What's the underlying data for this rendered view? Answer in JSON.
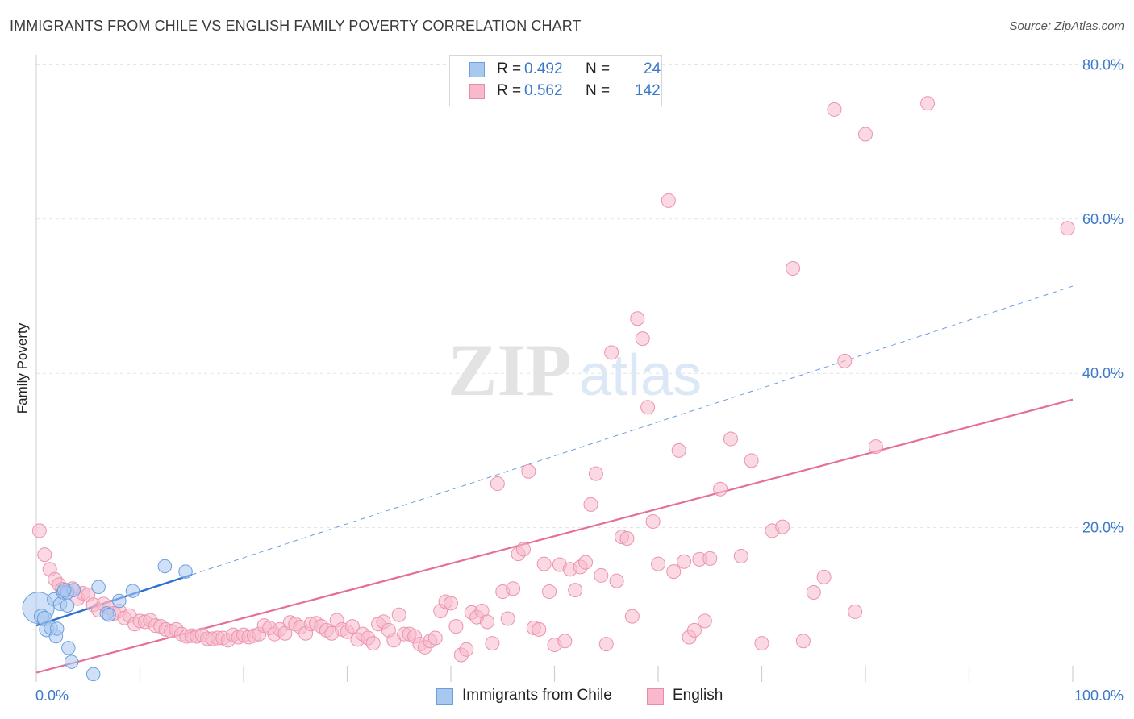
{
  "title": "IMMIGRANTS FROM CHILE VS ENGLISH FAMILY POVERTY CORRELATION CHART",
  "source": "Source: ZipAtlas.com",
  "watermark": {
    "zip": "ZIP",
    "atlas": "atlas"
  },
  "legend_box": {
    "rows": [
      {
        "r_label": "R =",
        "r_value": "0.492",
        "n_label": "N =",
        "n_value": "24",
        "color": "#a9c8f0",
        "border": "#6a9ee0"
      },
      {
        "r_label": "R =",
        "r_value": "0.562",
        "n_label": "N =",
        "n_value": "142",
        "color": "#f7b9cb",
        "border": "#e98aa6"
      }
    ]
  },
  "bottom_legend": {
    "items": [
      {
        "label": "Immigrants from Chile",
        "color": "#a9c8f0",
        "border": "#6a9ee0"
      },
      {
        "label": "English",
        "color": "#f7b9cb",
        "border": "#e98aa6"
      }
    ]
  },
  "chart_data": {
    "type": "scatter",
    "title": "IMMIGRANTS FROM CHILE VS ENGLISH FAMILY POVERTY CORRELATION CHART",
    "xlabel": "",
    "ylabel": "Family Poverty",
    "xlim": [
      0,
      100
    ],
    "ylim": [
      0,
      85
    ],
    "x_tick_labels": [
      {
        "value": 0,
        "label": "0.0%"
      },
      {
        "value": 100,
        "label": "100.0%"
      }
    ],
    "y_tick_labels": [
      {
        "value": 20,
        "label": "20.0%"
      },
      {
        "value": 40,
        "label": "40.0%"
      },
      {
        "value": 60,
        "label": "60.0%"
      },
      {
        "value": 80,
        "label": "80.0%"
      }
    ],
    "colors": {
      "chile": "#5b8fd6",
      "chile_fill": "#a9c8f0",
      "english": "#e56f97",
      "english_fill": "#f7b9cb",
      "grid": "#e3e3e3"
    },
    "series": [
      {
        "name": "Immigrants from Chile",
        "r": 0.492,
        "n": 24,
        "trend": {
          "x0": 0,
          "y0": 7.3,
          "x1": 15,
          "y1": 13.9
        },
        "trend_dashed": {
          "x0": 15,
          "y0": 13.9,
          "x1": 100,
          "y1": 51.3
        },
        "points": [
          [
            0.2,
            9.6,
            26
          ],
          [
            0.5,
            8.5,
            12
          ],
          [
            0.8,
            8.2,
            12
          ],
          [
            1.0,
            6.8,
            12
          ],
          [
            1.4,
            7.0,
            11
          ],
          [
            1.7,
            10.7,
            11
          ],
          [
            1.9,
            5.9,
            11
          ],
          [
            2.0,
            6.9,
            11
          ],
          [
            2.3,
            10.1,
            11
          ],
          [
            2.6,
            11.6,
            11
          ],
          [
            3.0,
            11.6,
            11
          ],
          [
            3.0,
            9.9,
            11
          ],
          [
            3.1,
            4.4,
            11
          ],
          [
            3.4,
            2.6,
            11
          ],
          [
            3.6,
            11.9,
            11
          ],
          [
            5.5,
            1.0,
            11
          ],
          [
            6.0,
            12.3,
            11
          ],
          [
            6.8,
            8.9,
            11
          ],
          [
            7.0,
            8.7,
            11
          ],
          [
            8.0,
            10.5,
            11
          ],
          [
            9.3,
            11.8,
            11
          ],
          [
            12.4,
            15.0,
            11
          ],
          [
            14.4,
            14.3,
            11
          ],
          [
            2.7,
            11.9,
            11
          ]
        ]
      },
      {
        "name": "English",
        "r": 0.562,
        "n": 142,
        "trend": {
          "x0": 0,
          "y0": 1.2,
          "x1": 100,
          "y1": 36.6
        },
        "points": [
          [
            0.3,
            19.6
          ],
          [
            0.8,
            16.5
          ],
          [
            1.3,
            14.6
          ],
          [
            1.8,
            13.3
          ],
          [
            2.2,
            12.6
          ],
          [
            2.5,
            12.0
          ],
          [
            3.0,
            11.9
          ],
          [
            3.5,
            12.1
          ],
          [
            4.0,
            10.8
          ],
          [
            4.5,
            11.5
          ],
          [
            5.0,
            11.3
          ],
          [
            5.5,
            10.0
          ],
          [
            6.0,
            9.3
          ],
          [
            6.5,
            10.1
          ],
          [
            7.0,
            9.6
          ],
          [
            7.5,
            8.9
          ],
          [
            8.0,
            9.2
          ],
          [
            8.5,
            8.3
          ],
          [
            9.0,
            8.6
          ],
          [
            9.5,
            7.5
          ],
          [
            10.0,
            7.9
          ],
          [
            10.5,
            7.8
          ],
          [
            11.0,
            8.0
          ],
          [
            11.5,
            7.3
          ],
          [
            12.0,
            7.2
          ],
          [
            12.5,
            6.8
          ],
          [
            13.0,
            6.6
          ],
          [
            13.5,
            6.8
          ],
          [
            14.0,
            6.2
          ],
          [
            14.5,
            5.9
          ],
          [
            15.0,
            6.0
          ],
          [
            15.5,
            5.9
          ],
          [
            16.0,
            6.1
          ],
          [
            16.5,
            5.6
          ],
          [
            17.0,
            5.6
          ],
          [
            17.5,
            5.7
          ],
          [
            18.0,
            5.7
          ],
          [
            18.5,
            5.4
          ],
          [
            19.0,
            6.1
          ],
          [
            19.5,
            5.8
          ],
          [
            20.0,
            6.1
          ],
          [
            20.5,
            5.8
          ],
          [
            21.0,
            6.0
          ],
          [
            21.5,
            6.2
          ],
          [
            22.0,
            7.3
          ],
          [
            22.5,
            7.0
          ],
          [
            23.0,
            6.2
          ],
          [
            23.5,
            6.8
          ],
          [
            24.0,
            6.3
          ],
          [
            24.5,
            7.7
          ],
          [
            25.0,
            7.5
          ],
          [
            25.5,
            7.1
          ],
          [
            26.0,
            6.3
          ],
          [
            26.5,
            7.5
          ],
          [
            27.0,
            7.6
          ],
          [
            27.5,
            7.2
          ],
          [
            28.0,
            6.7
          ],
          [
            28.5,
            6.3
          ],
          [
            29.0,
            8.0
          ],
          [
            29.5,
            6.8
          ],
          [
            30.0,
            6.5
          ],
          [
            30.5,
            7.2
          ],
          [
            31.0,
            5.5
          ],
          [
            31.5,
            6.2
          ],
          [
            32.0,
            5.7
          ],
          [
            32.5,
            5.0
          ],
          [
            33.0,
            7.5
          ],
          [
            33.5,
            7.8
          ],
          [
            34.0,
            6.7
          ],
          [
            34.5,
            5.4
          ],
          [
            35.0,
            8.7
          ],
          [
            35.5,
            6.2
          ],
          [
            36.0,
            6.2
          ],
          [
            36.5,
            5.9
          ],
          [
            37.0,
            4.9
          ],
          [
            37.5,
            4.5
          ],
          [
            38.0,
            5.3
          ],
          [
            38.5,
            5.7
          ],
          [
            39.0,
            9.2
          ],
          [
            39.5,
            10.4
          ],
          [
            40.0,
            10.2
          ],
          [
            40.5,
            7.2
          ],
          [
            41.0,
            3.5
          ],
          [
            41.5,
            4.2
          ],
          [
            42.0,
            9.0
          ],
          [
            42.5,
            8.4
          ],
          [
            43.0,
            9.2
          ],
          [
            43.5,
            7.8
          ],
          [
            44.0,
            5.0
          ],
          [
            44.5,
            25.7
          ],
          [
            45.0,
            11.7
          ],
          [
            45.5,
            8.2
          ],
          [
            46.0,
            12.1
          ],
          [
            46.5,
            16.6
          ],
          [
            47.0,
            17.2
          ],
          [
            47.5,
            27.3
          ],
          [
            48.0,
            7.0
          ],
          [
            48.5,
            6.8
          ],
          [
            49.0,
            15.3
          ],
          [
            49.5,
            11.7
          ],
          [
            50.0,
            4.8
          ],
          [
            50.5,
            15.2
          ],
          [
            51.0,
            5.3
          ],
          [
            51.5,
            14.6
          ],
          [
            52.0,
            11.9
          ],
          [
            52.5,
            14.9
          ],
          [
            53.0,
            15.5
          ],
          [
            53.5,
            23.0
          ],
          [
            54.0,
            27.0
          ],
          [
            54.5,
            13.8
          ],
          [
            55.0,
            4.9
          ],
          [
            55.5,
            42.7
          ],
          [
            56.0,
            13.1
          ],
          [
            56.5,
            18.8
          ],
          [
            57.0,
            18.6
          ],
          [
            57.5,
            8.5
          ],
          [
            58.0,
            47.1
          ],
          [
            58.5,
            44.5
          ],
          [
            59.0,
            35.6
          ],
          [
            59.5,
            20.8
          ],
          [
            60.0,
            15.3
          ],
          [
            61.0,
            62.4
          ],
          [
            61.5,
            14.3
          ],
          [
            62.0,
            30.0
          ],
          [
            62.5,
            15.6
          ],
          [
            63.0,
            5.8
          ],
          [
            63.5,
            6.7
          ],
          [
            64.0,
            15.9
          ],
          [
            64.5,
            7.9
          ],
          [
            65.0,
            16.0
          ],
          [
            66.0,
            25.0
          ],
          [
            67.0,
            31.5
          ],
          [
            68.0,
            16.3
          ],
          [
            69.0,
            28.7
          ],
          [
            70.0,
            5.0
          ],
          [
            71.0,
            19.6
          ],
          [
            72.0,
            20.1
          ],
          [
            73.0,
            53.6
          ],
          [
            74.0,
            5.3
          ],
          [
            75.0,
            11.6
          ],
          [
            76.0,
            13.6
          ],
          [
            77.0,
            74.2
          ],
          [
            78.0,
            41.6
          ],
          [
            79.0,
            9.1
          ],
          [
            80.0,
            71.0
          ],
          [
            81.0,
            30.5
          ],
          [
            86.0,
            75.0
          ],
          [
            99.5,
            58.8
          ]
        ]
      }
    ]
  }
}
